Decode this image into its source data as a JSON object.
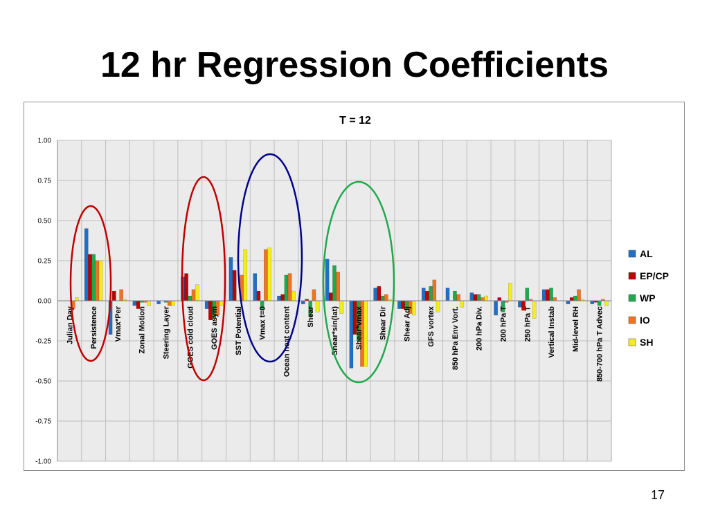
{
  "slide": {
    "title": "12 hr Regression Coefficients",
    "page_number": "17"
  },
  "chart_data": {
    "type": "bar",
    "title": "T = 12",
    "xlabel": "",
    "ylabel": "",
    "ylim": [
      -1.0,
      1.0
    ],
    "yticks": [
      "1.00",
      "0.75",
      "0.50",
      "0.25",
      "0.00",
      "-0.25",
      "-0.50",
      "-0.75",
      "-1.00"
    ],
    "grid": true,
    "legend_position": "right",
    "categories": [
      "Julian Day",
      "Persistence",
      "Vmax*Per",
      "Zonal Motion",
      "Steering Layer",
      "GOES cold cloud",
      "GOES asym",
      "SST Potential",
      "Vmax t=0",
      "Ocean heat content",
      "Shear",
      "Shear*sin(lat)",
      "Shear*vmax",
      "Shear Dir",
      "Shear Adj",
      "GFS vortex",
      "850 hPa Env Vort.",
      "200 hPa Div.",
      "200 hPa T",
      "250 hPa T",
      "Vertical Instab",
      "Mid-level RH",
      "850-700 hPa T Advec"
    ],
    "series": [
      {
        "name": "AL",
        "color": "#1f6fc2",
        "values": [
          0.0,
          0.45,
          -0.21,
          -0.03,
          -0.02,
          0.15,
          -0.05,
          0.27,
          0.17,
          0.03,
          -0.02,
          0.26,
          -0.42,
          0.08,
          -0.05,
          0.08,
          0.08,
          0.05,
          -0.09,
          -0.04,
          0.07,
          -0.02,
          -0.02
        ]
      },
      {
        "name": "EP/CP",
        "color": "#c00000",
        "values": [
          0.0,
          0.29,
          0.06,
          -0.05,
          0.0,
          0.17,
          -0.12,
          0.19,
          0.06,
          0.04,
          0.01,
          0.05,
          -0.21,
          0.09,
          -0.05,
          0.06,
          0.0,
          0.04,
          0.02,
          -0.06,
          0.07,
          0.02,
          -0.01
        ]
      },
      {
        "name": "WP",
        "color": "#1fa84c",
        "values": [
          0.0,
          0.29,
          0.0,
          -0.01,
          -0.01,
          0.03,
          -0.11,
          0.0,
          -0.05,
          0.16,
          -0.1,
          0.22,
          -0.25,
          0.03,
          -0.05,
          0.09,
          0.06,
          0.04,
          -0.07,
          0.08,
          0.08,
          0.03,
          -0.03
        ]
      },
      {
        "name": "IO",
        "color": "#ee7420",
        "values": [
          -0.05,
          0.25,
          0.07,
          -0.01,
          -0.03,
          0.07,
          -0.09,
          0.16,
          0.32,
          0.17,
          0.07,
          0.18,
          -0.41,
          0.04,
          -0.08,
          0.13,
          0.04,
          0.02,
          -0.01,
          0.01,
          0.02,
          0.07,
          0.01
        ]
      },
      {
        "name": "SH",
        "color": "#f5ec1a",
        "values": [
          0.02,
          0.25,
          0.01,
          -0.03,
          -0.03,
          0.1,
          -0.03,
          0.32,
          0.33,
          0.06,
          -0.07,
          -0.08,
          -0.41,
          0.01,
          -0.09,
          -0.07,
          -0.04,
          0.03,
          0.11,
          -0.11,
          0.0,
          0.01,
          -0.03
        ]
      }
    ],
    "annotations": [
      {
        "shape": "ellipse",
        "color": "#c00000",
        "around": "Persistence"
      },
      {
        "shape": "ellipse",
        "color": "#c00000",
        "around": "GOES cold cloud, GOES asym"
      },
      {
        "shape": "ellipse",
        "color": "#00008b",
        "around": "SST Potential, Vmax t=0, Ocean heat content"
      },
      {
        "shape": "ellipse",
        "color": "#1fa84c",
        "around": "Shear, Shear*sin(lat), Shear*vmax"
      }
    ]
  }
}
